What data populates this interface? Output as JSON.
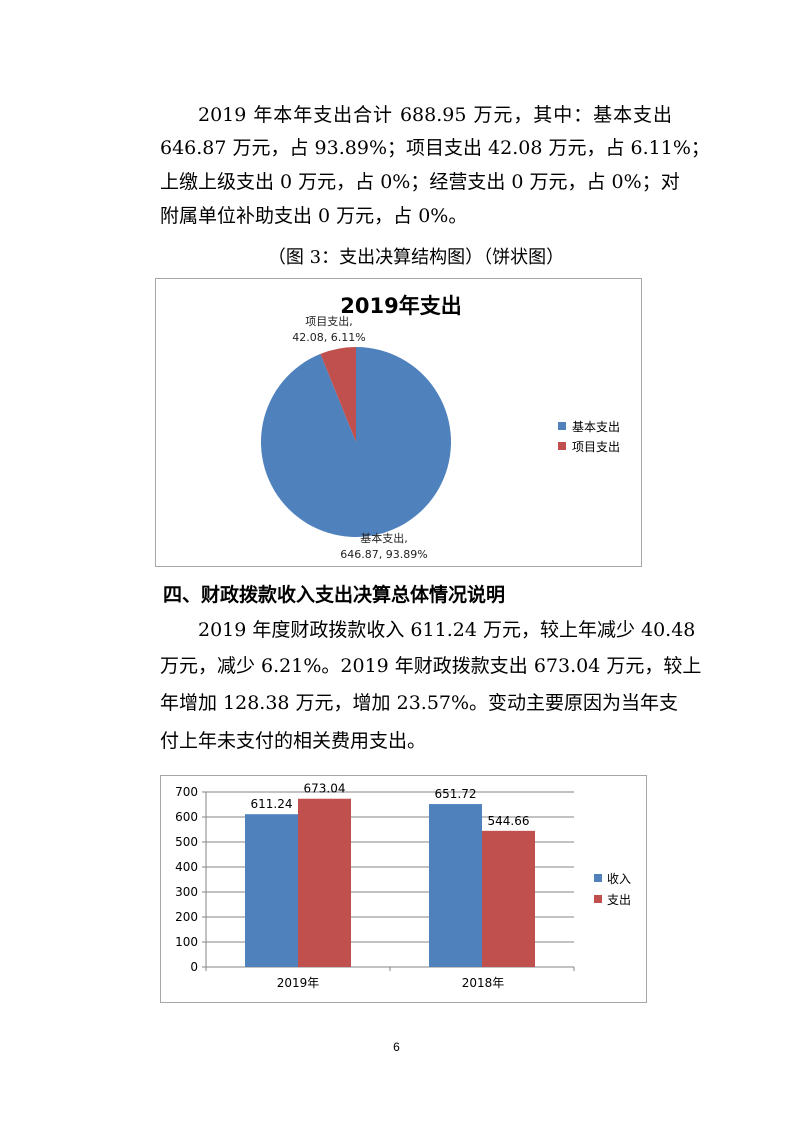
{
  "paragraph1": {
    "lines": [
      "2019 年本年支出合计 688.95 万元，其中：基本支出",
      "646.87 万元，占 93.89%；项目支出 42.08 万元，占 6.11%；",
      "上缴上级支出 0 万元，占 0%；经营支出 0 万元，占 0%；对",
      "附属单位补助支出 0 万元，占 0%。"
    ]
  },
  "figure3_caption": "（图 3：支出决算结构图）（饼状图）",
  "section_heading": "四、财政拨款收入支出决算总体情况说明",
  "paragraph2": {
    "lines": [
      "2019 年度财政拨款收入 611.24 万元，较上年减少 40.48",
      "万元，减少 6.21%。2019 年财政拨款支出 673.04 万元，较上",
      "年增加 128.38 万元，增加 23.57%。变动主要原因为当年支",
      "付上年未支付的相关费用支出。"
    ]
  },
  "page_number": "6",
  "chart_data": [
    {
      "type": "pie",
      "title": "2019年支出",
      "categories": [
        "基本支出",
        "项目支出"
      ],
      "values": [
        646.87,
        42.08
      ],
      "percents": [
        "93.89%",
        "6.11%"
      ],
      "data_labels": [
        {
          "name": "基本支出,",
          "value": "646.87, 93.89%"
        },
        {
          "name": "项目支出,",
          "value": "42.08, 6.11%"
        }
      ],
      "colors": [
        "#4F81BD",
        "#C0504D"
      ],
      "legend": {
        "position": "right",
        "entries": [
          "基本支出",
          "项目支出"
        ]
      }
    },
    {
      "type": "bar",
      "title": "",
      "categories": [
        "2019年",
        "2018年"
      ],
      "series": [
        {
          "name": "收入",
          "values": [
            611.24,
            651.72
          ],
          "labels": [
            "611.24",
            "651.72"
          ],
          "color": "#4F81BD"
        },
        {
          "name": "支出",
          "values": [
            673.04,
            544.66
          ],
          "labels": [
            "673.04",
            "544.66"
          ],
          "color": "#C0504D"
        }
      ],
      "ylim": [
        0,
        700
      ],
      "yticks": [
        "0",
        "100",
        "200",
        "300",
        "400",
        "500",
        "600",
        "700"
      ],
      "grid": true,
      "legend": {
        "position": "right",
        "entries": [
          "收入",
          "支出"
        ]
      }
    }
  ]
}
